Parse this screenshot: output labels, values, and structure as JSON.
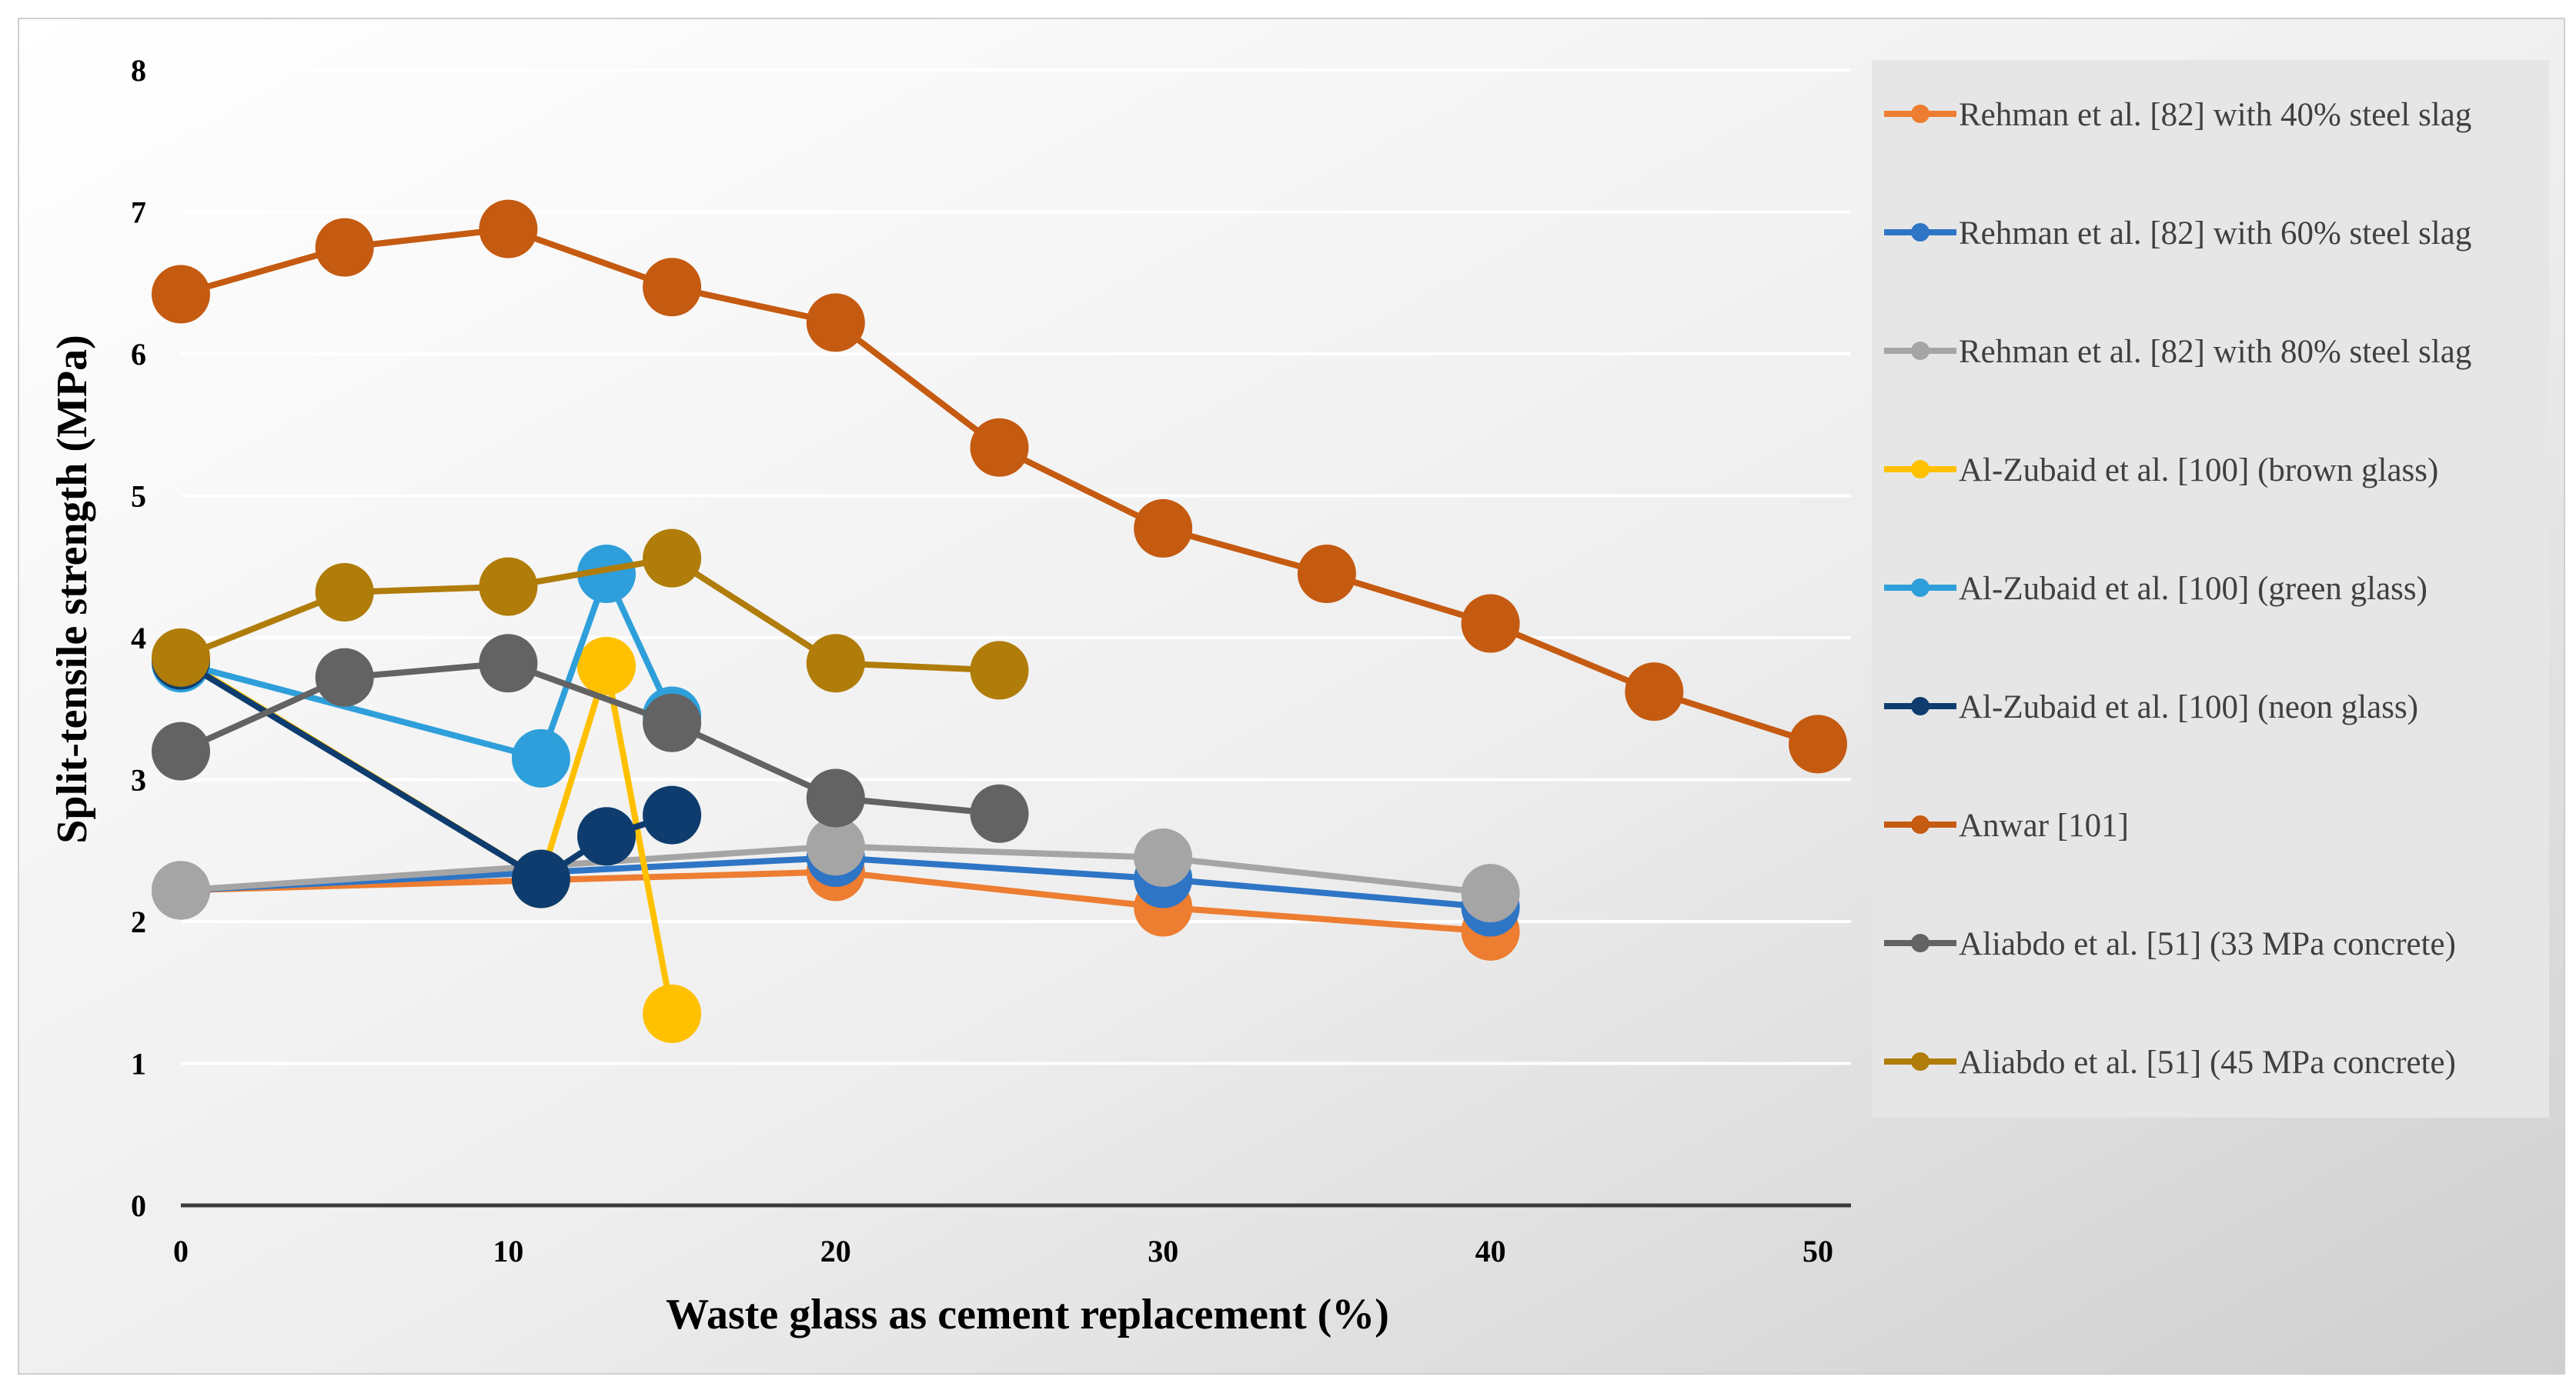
{
  "chart_data": {
    "type": "line",
    "title": "",
    "xlabel": "Waste glass as cement replacement (%)",
    "ylabel": "Split-tensile strength (MPa)",
    "xlim": [
      0,
      50
    ],
    "ylim": [
      0,
      8
    ],
    "xticks": [
      "0",
      "10",
      "20",
      "30",
      "40",
      "50"
    ],
    "yticks": [
      "0",
      "1",
      "2",
      "3",
      "4",
      "5",
      "6",
      "7",
      "8"
    ],
    "grid": true,
    "legend_position": "right",
    "series": [
      {
        "name": "Rehman et al. [82] with 40% steel slag",
        "color": "#ED7D31",
        "x": [
          0,
          20,
          30,
          40
        ],
        "y": [
          2.22,
          2.35,
          2.1,
          1.93
        ]
      },
      {
        "name": "Rehman et al. [82] with 60% steel slag",
        "color": "#2E75C6",
        "x": [
          0,
          20,
          30,
          40
        ],
        "y": [
          2.22,
          2.45,
          2.3,
          2.1
        ]
      },
      {
        "name": "Rehman et al. [82] with 80% steel slag",
        "color": "#A5A5A5",
        "x": [
          0,
          20,
          30,
          40
        ],
        "y": [
          2.22,
          2.53,
          2.45,
          2.2
        ]
      },
      {
        "name": "Al-Zubaid et al. [100] (brown glass)",
        "color": "#FFC000",
        "x": [
          0,
          11,
          13,
          15
        ],
        "y": [
          3.85,
          2.3,
          3.8,
          1.35
        ]
      },
      {
        "name": "Al-Zubaid et al. [100] (green glass)",
        "color": "#2E9FDA",
        "x": [
          0,
          11,
          13,
          15
        ],
        "y": [
          3.82,
          3.15,
          4.45,
          3.45
        ]
      },
      {
        "name": "Al-Zubaid et al. [100] (neon glass)",
        "color": "#0E3C6E",
        "x": [
          0,
          11,
          13,
          15
        ],
        "y": [
          3.84,
          2.3,
          2.6,
          2.75
        ]
      },
      {
        "name": "Anwar [101]",
        "color": "#C55A11",
        "x": [
          0,
          5,
          10,
          15,
          20,
          25,
          30,
          35,
          40,
          45,
          50
        ],
        "y": [
          6.42,
          6.75,
          6.88,
          6.47,
          6.22,
          5.34,
          4.77,
          4.45,
          4.1,
          3.62,
          3.25
        ]
      },
      {
        "name": "Aliabdo et al. [51] (33 MPa concrete)",
        "color": "#636363",
        "x": [
          0,
          5,
          10,
          15,
          20,
          25
        ],
        "y": [
          3.2,
          3.72,
          3.82,
          3.4,
          2.87,
          2.76
        ]
      },
      {
        "name": "Aliabdo et al. [51] (45 MPa concrete)",
        "color": "#B07C0A",
        "x": [
          0,
          5,
          10,
          15,
          20,
          25
        ],
        "y": [
          3.86,
          4.32,
          4.36,
          4.56,
          3.82,
          3.77
        ]
      }
    ]
  }
}
